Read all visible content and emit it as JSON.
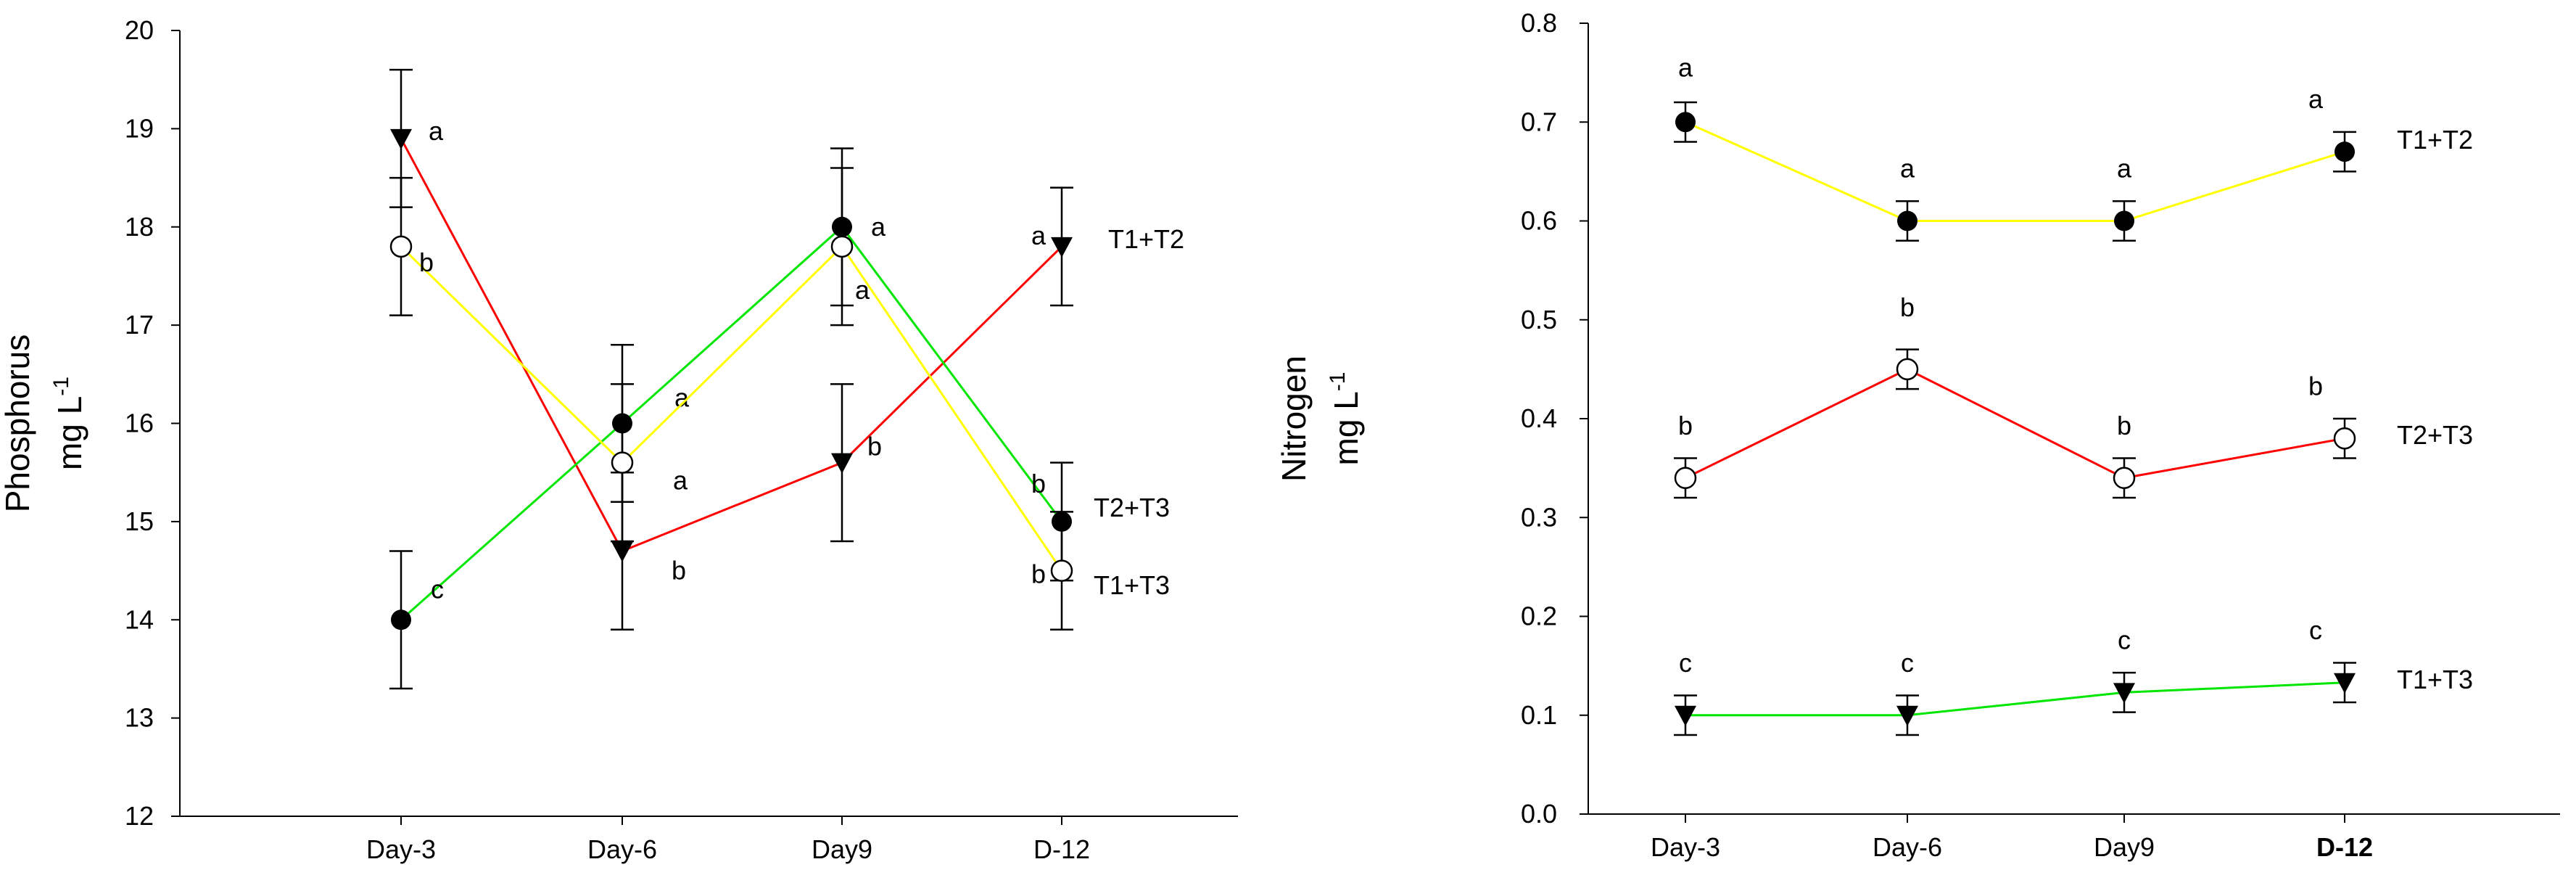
{
  "chart_data": [
    {
      "type": "line",
      "ylabel": [
        "Phosphorus",
        "mg L",
        "-1"
      ],
      "categories": [
        "Day-3",
        "Day-6",
        "Day9",
        "D-12"
      ],
      "ylim": [
        12,
        20
      ],
      "yticks": [
        12,
        13,
        14,
        15,
        16,
        17,
        18,
        19,
        20
      ],
      "series": [
        {
          "name": "T1+T2",
          "color": "#ff0000",
          "marker": "triangle-down",
          "values": [
            18.9,
            14.7,
            15.6,
            17.8
          ],
          "errors": [
            0.7,
            0.8,
            0.8,
            0.6
          ],
          "letters": [
            "a",
            "b",
            "b",
            "a"
          ]
        },
        {
          "name": "T2+T3",
          "color": "#00e600",
          "marker": "filled-circle",
          "values": [
            14.0,
            16.0,
            18.0,
            15.0
          ],
          "errors": [
            0.7,
            0.8,
            0.8,
            0.6
          ],
          "letters": [
            "c",
            "a",
            "a",
            "b"
          ]
        },
        {
          "name": "T1+T3",
          "color": "#ffff00",
          "marker": "open-circle",
          "values": [
            17.8,
            15.6,
            17.8,
            14.5
          ],
          "errors": [
            0.7,
            0.8,
            0.8,
            0.6
          ],
          "letters": [
            "b",
            "a",
            "a",
            "b"
          ]
        }
      ]
    },
    {
      "type": "line",
      "ylabel": [
        "Nitrogen",
        "mg L",
        "-1"
      ],
      "categories": [
        "Day-3",
        "Day-6",
        "Day9",
        "D-12"
      ],
      "ylim": [
        0,
        0.8
      ],
      "yticks": [
        "0.0",
        "0.1",
        "0.2",
        "0.3",
        "0.4",
        "0.5",
        "0.6",
        "0.7",
        "0.8"
      ],
      "series": [
        {
          "name": "T1+T2",
          "color": "#ffff00",
          "marker": "filled-circle",
          "values": [
            0.7,
            0.6,
            0.6,
            0.67
          ],
          "errors": [
            0.02,
            0.02,
            0.02,
            0.02
          ],
          "letters": [
            "a",
            "a",
            "a",
            "a"
          ]
        },
        {
          "name": "T2+T3",
          "color": "#ff0000",
          "marker": "open-circle",
          "values": [
            0.34,
            0.45,
            0.34,
            0.38
          ],
          "errors": [
            0.02,
            0.02,
            0.02,
            0.02
          ],
          "letters": [
            "b",
            "b",
            "b",
            "b"
          ]
        },
        {
          "name": "T1+T3",
          "color": "#00e600",
          "marker": "triangle-down",
          "values": [
            0.1,
            0.1,
            0.123,
            0.133
          ],
          "errors": [
            0.02,
            0.02,
            0.02,
            0.02
          ],
          "letters": [
            "c",
            "c",
            "c",
            "c"
          ]
        }
      ]
    }
  ]
}
